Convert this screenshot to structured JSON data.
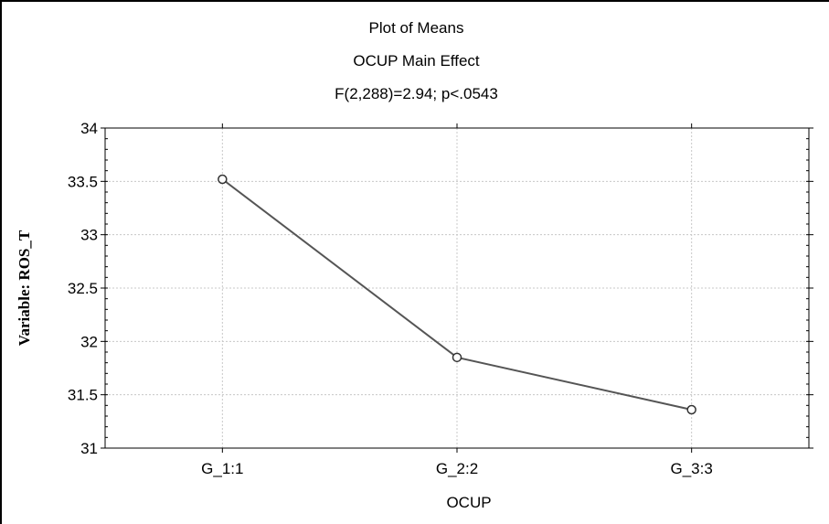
{
  "chart_data": {
    "type": "line",
    "title": "Plot of Means",
    "subtitle": "OCUP Main Effect",
    "stat_line": "F(2,288)=2.94; p<.0543",
    "xlabel": "OCUP",
    "ylabel": "Variable: ROS_T",
    "categories": [
      "G_1:1",
      "G_2:2",
      "G_3:3"
    ],
    "series": [
      {
        "values": [
          33.52,
          31.85,
          31.36
        ]
      }
    ],
    "ylim": [
      31,
      34
    ],
    "yticks": [
      31,
      31.5,
      32,
      32.5,
      33,
      33.5,
      34
    ],
    "ytick_labels": [
      "31",
      "31.5",
      "32",
      "32.5",
      "33",
      "33.5",
      "34"
    ],
    "grid": true,
    "line_color": "#555555",
    "marker": "open-circle"
  }
}
